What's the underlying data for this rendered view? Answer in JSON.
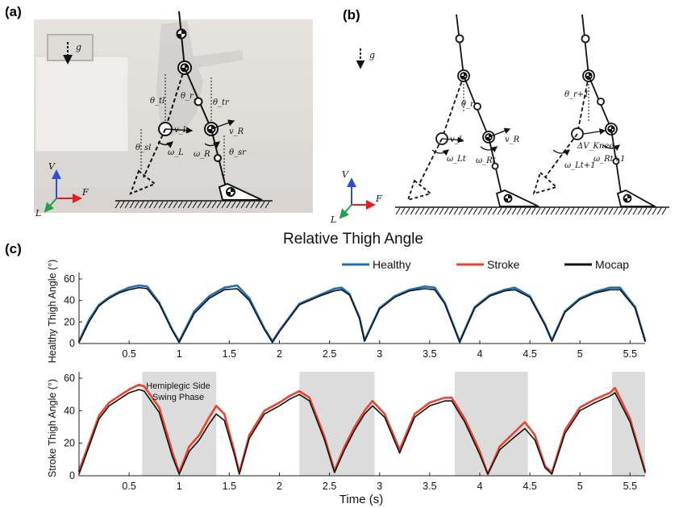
{
  "panel_labels": {
    "a": "(a)",
    "b": "(b)",
    "c": "(c)"
  },
  "main_title": "Relative Thigh Angle",
  "gravity_label": "g",
  "diagram_a": {
    "axis_labels": {
      "v": "V",
      "f": "F",
      "l": "L"
    },
    "labels": {
      "theta_tl": "θ_tl",
      "theta_r": "θ_r",
      "theta_tr": "θ_tr",
      "v_l": "v_L",
      "v_r": "v_R",
      "omega_l": "ω_L",
      "omega_r": "ω_R",
      "theta_sl": "θ_sl",
      "theta_sr": "θ_sr"
    }
  },
  "diagram_b": {
    "axis_labels": {
      "v": "V",
      "f": "F",
      "l": "L"
    },
    "labels": {
      "theta_r": "θ_r",
      "v_l": "v_L",
      "v_r": "v_R",
      "omega_lt": "ω_Lt",
      "omega_rt": "ω_Rt",
      "theta_r1": "θ_r+1",
      "dv_knee": "ΔV_Knee",
      "omega_lt1": "ω_Lt+1",
      "omega_rt1": "ω_Rt+1"
    }
  },
  "legend": [
    {
      "name": "Healthy",
      "color": "#1f6fb5"
    },
    {
      "name": "Stroke",
      "color": "#e8452f"
    },
    {
      "name": "Mocap",
      "color": "#111111"
    }
  ],
  "annotation": {
    "line1": "Hemiplegic Side",
    "line2": "Swing Phase"
  },
  "chart_data": [
    {
      "type": "line",
      "ylabel": "Healthy Thigh Angle (°)",
      "xlabel": "",
      "xlim": [
        0,
        5.65
      ],
      "ylim": [
        0,
        60
      ],
      "xticks": [
        "0.5",
        "1",
        "1.5",
        "2",
        "2.5",
        "3",
        "3.5",
        "4",
        "4.5",
        "5",
        "5.5"
      ],
      "yticks": [
        "0",
        "20",
        "40",
        "60"
      ],
      "series": [
        {
          "name": "Healthy",
          "color": "#1f6fb5",
          "width": 2.6,
          "x": [
            0,
            0.1,
            0.2,
            0.3,
            0.4,
            0.5,
            0.6,
            0.68,
            0.8,
            0.93,
            1.0,
            1.15,
            1.3,
            1.45,
            1.58,
            1.7,
            1.85,
            1.93,
            2.0,
            2.2,
            2.4,
            2.55,
            2.62,
            2.7,
            2.8,
            2.85,
            3.0,
            3.15,
            3.3,
            3.45,
            3.55,
            3.65,
            3.75,
            3.8,
            3.95,
            4.1,
            4.25,
            4.35,
            4.5,
            4.65,
            4.72,
            4.85,
            5.0,
            5.15,
            5.3,
            5.4,
            5.55,
            5.65
          ],
          "y": [
            2,
            22,
            36,
            43,
            48,
            52,
            54,
            53,
            38,
            13,
            2,
            30,
            44,
            52,
            54,
            42,
            14,
            2,
            12,
            37,
            45,
            51,
            52,
            46,
            24,
            3,
            33,
            44,
            50,
            53,
            52,
            38,
            14,
            2,
            34,
            45,
            50,
            52,
            44,
            18,
            3,
            30,
            42,
            48,
            52,
            52,
            34,
            3
          ]
        },
        {
          "name": "Mocap",
          "color": "#111111",
          "width": 1.6,
          "x": [
            0,
            0.1,
            0.2,
            0.3,
            0.4,
            0.5,
            0.6,
            0.68,
            0.8,
            0.93,
            1.0,
            1.15,
            1.3,
            1.45,
            1.58,
            1.7,
            1.85,
            1.93,
            2.0,
            2.2,
            2.4,
            2.55,
            2.62,
            2.7,
            2.8,
            2.85,
            3.0,
            3.15,
            3.3,
            3.45,
            3.55,
            3.65,
            3.75,
            3.8,
            3.95,
            4.1,
            4.25,
            4.35,
            4.5,
            4.65,
            4.72,
            4.85,
            5.0,
            5.15,
            5.3,
            5.4,
            5.55,
            5.65
          ],
          "y": [
            1,
            20,
            35,
            42,
            47,
            50,
            52,
            51,
            37,
            12,
            1,
            28,
            42,
            50,
            51,
            40,
            13,
            1,
            11,
            36,
            44,
            49,
            50,
            45,
            23,
            2,
            32,
            43,
            49,
            51,
            50,
            37,
            13,
            1,
            33,
            44,
            49,
            50,
            43,
            17,
            2,
            29,
            41,
            47,
            50,
            50,
            33,
            2
          ]
        }
      ]
    },
    {
      "type": "line",
      "ylabel": "Stroke Thigh Angle (°)",
      "xlabel": "Time (s)",
      "xlim": [
        0,
        5.65
      ],
      "ylim": [
        0,
        60
      ],
      "xticks": [
        "0.5",
        "1",
        "1.5",
        "2",
        "2.5",
        "3",
        "3.5",
        "4",
        "4.5",
        "5",
        "5.5"
      ],
      "yticks": [
        "0",
        "20",
        "40",
        "60"
      ],
      "shaded_spans": [
        [
          0.63,
          1.37
        ],
        [
          2.2,
          2.95
        ],
        [
          3.75,
          4.48
        ],
        [
          5.32,
          5.65
        ]
      ],
      "series": [
        {
          "name": "Stroke",
          "color": "#e8452f",
          "width": 2.6,
          "x": [
            0,
            0.1,
            0.2,
            0.3,
            0.4,
            0.5,
            0.6,
            0.65,
            0.8,
            0.93,
            1.0,
            1.1,
            1.2,
            1.3,
            1.37,
            1.45,
            1.55,
            1.6,
            1.7,
            1.85,
            2.0,
            2.1,
            2.2,
            2.3,
            2.45,
            2.55,
            2.65,
            2.75,
            2.85,
            2.93,
            3.05,
            3.2,
            3.35,
            3.5,
            3.65,
            3.72,
            3.85,
            4.0,
            4.08,
            4.2,
            4.35,
            4.45,
            4.55,
            4.65,
            4.72,
            4.85,
            5.0,
            5.15,
            5.3,
            5.35,
            5.5,
            5.65
          ],
          "y": [
            3,
            20,
            37,
            45,
            49,
            53,
            56,
            55,
            42,
            15,
            2,
            18,
            25,
            36,
            43,
            38,
            15,
            2,
            25,
            40,
            45,
            49,
            52,
            48,
            24,
            3,
            18,
            30,
            40,
            46,
            38,
            16,
            38,
            45,
            48,
            48,
            35,
            15,
            1,
            18,
            27,
            33,
            25,
            6,
            2,
            28,
            42,
            47,
            51,
            54,
            35,
            3
          ]
        },
        {
          "name": "Mocap",
          "color": "#111111",
          "width": 1.6,
          "x": [
            0,
            0.1,
            0.2,
            0.3,
            0.4,
            0.5,
            0.6,
            0.65,
            0.8,
            0.93,
            1.0,
            1.1,
            1.2,
            1.3,
            1.37,
            1.45,
            1.55,
            1.6,
            1.7,
            1.85,
            2.0,
            2.1,
            2.2,
            2.3,
            2.45,
            2.55,
            2.65,
            2.75,
            2.85,
            2.93,
            3.05,
            3.2,
            3.35,
            3.5,
            3.65,
            3.72,
            3.85,
            4.0,
            4.08,
            4.2,
            4.35,
            4.45,
            4.55,
            4.65,
            4.72,
            4.85,
            5.0,
            5.15,
            5.3,
            5.35,
            5.5,
            5.65
          ],
          "y": [
            1,
            18,
            35,
            43,
            47,
            51,
            53,
            52,
            39,
            12,
            1,
            15,
            22,
            32,
            38,
            34,
            13,
            1,
            23,
            38,
            43,
            47,
            50,
            46,
            22,
            2,
            16,
            28,
            38,
            43,
            36,
            14,
            36,
            43,
            46,
            46,
            33,
            13,
            1,
            16,
            24,
            29,
            22,
            5,
            1,
            26,
            40,
            45,
            49,
            51,
            33,
            2
          ]
        }
      ]
    }
  ]
}
